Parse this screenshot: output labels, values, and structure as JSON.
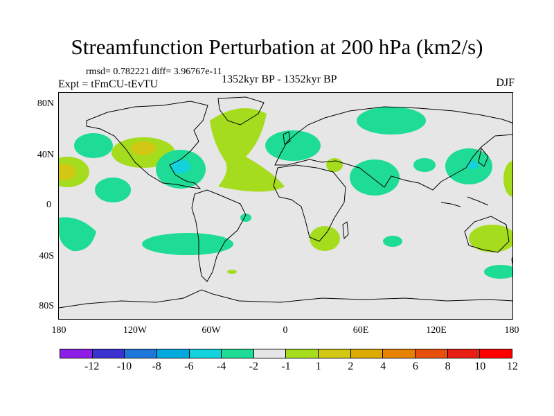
{
  "title": "Streamfunction Perturbation at 200 hPa (km2/s)",
  "stats": "rmsd= 0.782221 diff= 3.96767e-11",
  "experiment": "Expt = tFmCU-tEvTU",
  "period": "1352kyr BP - 1352kyr BP",
  "season": "DJF",
  "lat_labels": [
    "80N",
    "40N",
    "0",
    "40S",
    "80S"
  ],
  "lon_labels": [
    "180",
    "120W",
    "60W",
    "0",
    "60E",
    "120E",
    "180"
  ],
  "colorbar": {
    "colors": [
      "#8c1ee6",
      "#3c32d2",
      "#1e78dc",
      "#00aade",
      "#14d2dc",
      "#1edc96",
      "#e6e6e6",
      "#a6dc1e",
      "#d2c814",
      "#dcaa00",
      "#e68200",
      "#e6500a",
      "#e61e14",
      "#ff0000"
    ],
    "labels": [
      "-12",
      "-10",
      "-8",
      "-6",
      "-4",
      "-2",
      "-1",
      "1",
      "2",
      "4",
      "6",
      "8",
      "10",
      "12"
    ]
  },
  "map_colors": {
    "background": "#e6e6e6",
    "neg_weak": "#1edc96",
    "neg_mid": "#14d2dc",
    "neg_strong": "#00aade",
    "pos_weak": "#a6dc1e",
    "pos_mid": "#d2c814"
  }
}
